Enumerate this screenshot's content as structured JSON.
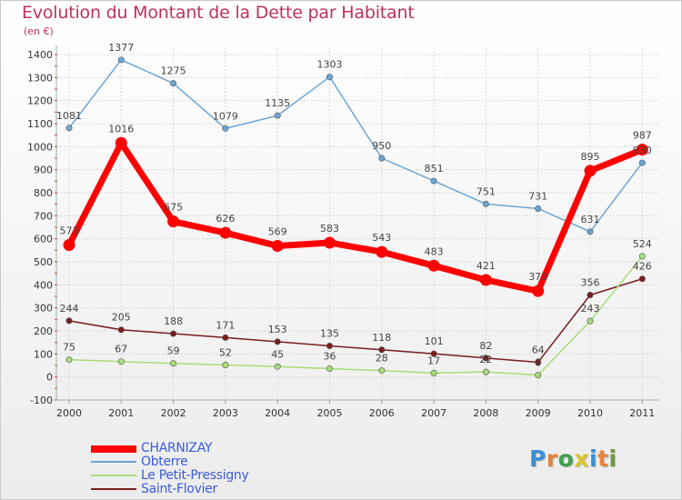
{
  "chart_data": {
    "type": "line",
    "title": "Evolution du Montant de la Dette par Habitant",
    "subtitle": "(en €)",
    "x": [
      "2000",
      "2001",
      "2002",
      "2003",
      "2004",
      "2005",
      "2006",
      "2007",
      "2008",
      "2009",
      "2010",
      "2011"
    ],
    "yticks": [
      "1400",
      "1300",
      "1200",
      "1100",
      "1000",
      "900",
      "800",
      "700",
      "600",
      "500",
      "400",
      "300",
      "200",
      "100",
      "0",
      "-100"
    ],
    "ylim": [
      -100,
      1400
    ],
    "grid": true,
    "legend_position": "bottom-left",
    "series": [
      {
        "name": "CHARNIZAY",
        "color": "#ff0000",
        "values": [
          573,
          1016,
          675,
          626,
          569,
          583,
          543,
          483,
          421,
          373,
          895,
          987
        ],
        "labels": [
          "573",
          "1016",
          "675",
          "626",
          "569",
          "583",
          "543",
          "483",
          "421",
          "373",
          "895",
          "987"
        ]
      },
      {
        "name": "Obterre",
        "color": "#6ba6d6",
        "values": [
          1081,
          1377,
          1275,
          1079,
          1135,
          1303,
          950,
          851,
          751,
          731,
          631,
          930
        ],
        "labels": [
          "1081",
          "1377",
          "1275",
          "1079",
          "1135",
          "1303",
          "950",
          "851",
          "751",
          "731",
          "631",
          "930"
        ]
      },
      {
        "name": "Le Petit-Pressigny",
        "color": "#a8dd7a",
        "values": [
          75,
          67,
          59,
          52,
          45,
          36,
          28,
          17,
          22,
          8,
          243,
          524
        ],
        "labels": [
          "75",
          "67",
          "59",
          "52",
          "45",
          "36",
          "28",
          "17",
          "22",
          "8",
          "243",
          "524"
        ]
      },
      {
        "name": "Saint-Flovier",
        "color": "#7a1d1d",
        "values": [
          244,
          205,
          188,
          171,
          153,
          135,
          118,
          101,
          82,
          64,
          356,
          426
        ],
        "labels": [
          "244",
          "205",
          "188",
          "171",
          "153",
          "135",
          "118",
          "101",
          "82",
          "64",
          "356",
          "426"
        ]
      }
    ]
  },
  "logo": {
    "letters": [
      "P",
      "r",
      "o",
      "x",
      "i",
      "t",
      "i"
    ],
    "colors": [
      "#3b8fd8",
      "#e8833a",
      "#3fa14a",
      "#d8c52b",
      "#3b8fd8",
      "#e8833a",
      "#6a9a3a"
    ]
  }
}
